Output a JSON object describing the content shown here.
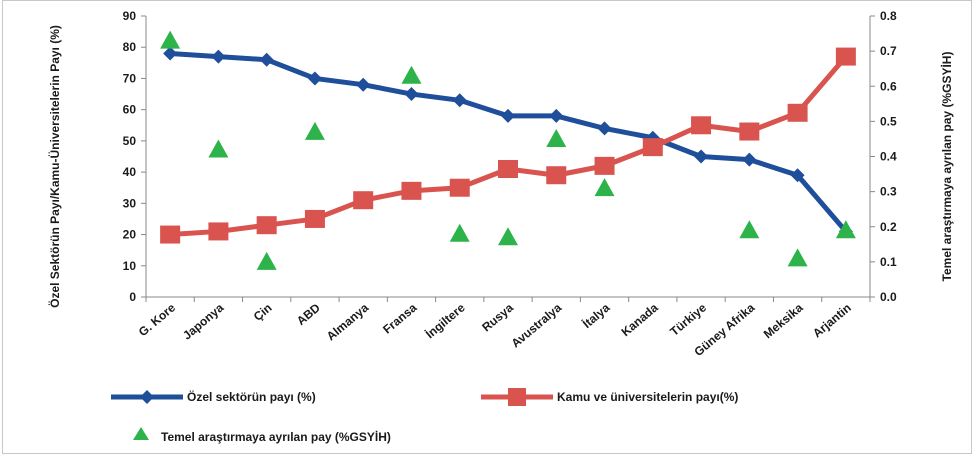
{
  "chart_data": {
    "type": "line",
    "categories": [
      "G. Kore",
      "Japonya",
      "Çin",
      "ABD",
      "Almanya",
      "Fransa",
      "İngiltere",
      "Rusya",
      "Avustralya",
      "İtalya",
      "Kanada",
      "Türkiye",
      "Güney Afrika",
      "Meksika",
      "Arjantin"
    ],
    "y_left": {
      "label": "Özel Sektörün Payı/Kamu-Üniversitelerin Payı (%)",
      "ylim": [
        0,
        90
      ],
      "ticks": [
        "0",
        "10",
        "20",
        "30",
        "40",
        "50",
        "60",
        "70",
        "80",
        "90"
      ]
    },
    "y_right": {
      "label": "Temel araştırmaya ayrılan pay (%GSYİH)",
      "ylim": [
        0,
        0.8
      ],
      "ticks": [
        "0.0",
        "0.1",
        "0.2",
        "0.3",
        "0.4",
        "0.5",
        "0.6",
        "0.7",
        "0.8"
      ]
    },
    "series": [
      {
        "name": "Özel sektörün payı (%)",
        "axis": "left",
        "style": "line-diamond",
        "color": "#1f4e9a",
        "values": [
          78,
          77,
          76,
          70,
          68,
          65,
          63,
          58,
          58,
          54,
          51,
          45,
          44,
          39,
          21
        ]
      },
      {
        "name": "Kamu ve üniversitelerin payı(%)",
        "axis": "left",
        "style": "line-square",
        "color": "#d9534f",
        "values": [
          20,
          21,
          23,
          25,
          31,
          34,
          35,
          41,
          39,
          42,
          48,
          55,
          53,
          59,
          77
        ]
      },
      {
        "name": "Temel araştırmaya ayrılan pay (%GSYİH)",
        "axis": "right",
        "style": "marker-triangle",
        "color": "#2db34a",
        "values": [
          0.73,
          0.42,
          0.1,
          0.47,
          null,
          0.63,
          0.18,
          0.17,
          0.45,
          0.31,
          null,
          null,
          0.19,
          0.11,
          0.19
        ]
      }
    ],
    "legend_position": "bottom-left",
    "grid": false
  }
}
